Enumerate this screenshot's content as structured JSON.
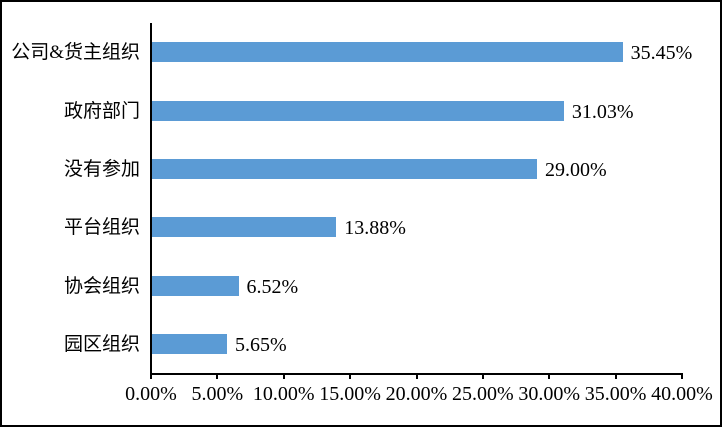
{
  "chart_data": {
    "type": "bar",
    "orientation": "horizontal",
    "categories": [
      "公司&货主组织",
      "政府部门",
      "没有参加",
      "平台组织",
      "协会组织",
      "园区组织"
    ],
    "values": [
      35.45,
      31.03,
      29.0,
      13.88,
      6.52,
      5.65
    ],
    "data_labels": [
      "35.45%",
      "31.03%",
      "29.00%",
      "13.88%",
      "6.52%",
      "5.65%"
    ],
    "x_tick_labels": [
      "0.00%",
      "5.00%",
      "10.00%",
      "15.00%",
      "20.00%",
      "25.00%",
      "30.00%",
      "35.00%",
      "40.00%"
    ],
    "x_tick_values": [
      0,
      5,
      10,
      15,
      20,
      25,
      30,
      35,
      40
    ],
    "xlim": [
      0,
      40
    ],
    "grid": false,
    "legend": false,
    "bar_color": "#5B9BD5",
    "axis_color": "#000000",
    "text_color": "#000000",
    "background_color": "#ffffff"
  }
}
